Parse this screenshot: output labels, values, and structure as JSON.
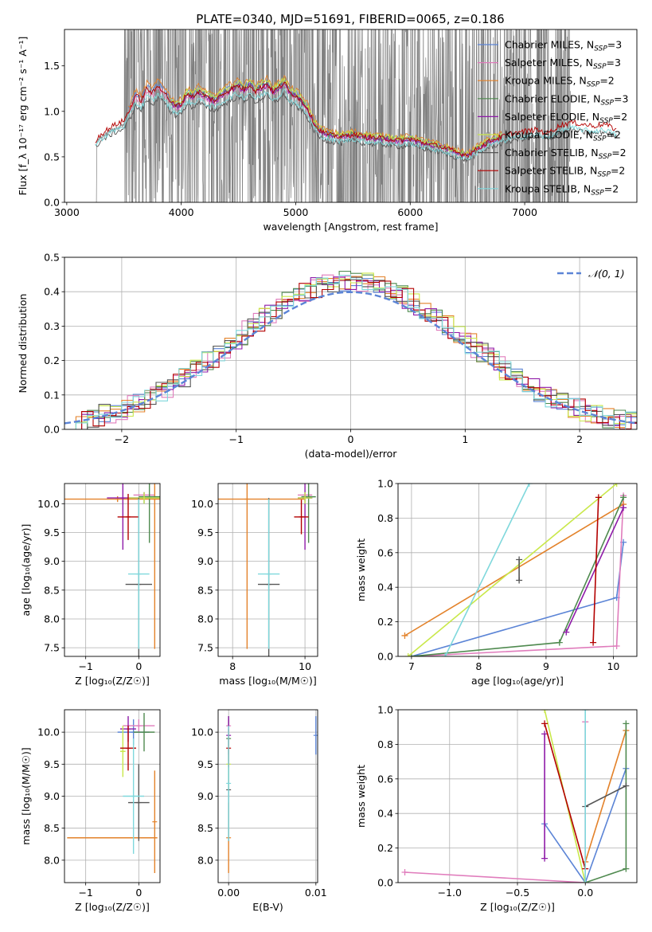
{
  "title": "PLATE=0340, MJD=51691, FIBERID=0065, z=0.186",
  "colors": {
    "Chabrier MILES": "#5b84d6",
    "Salpeter MILES": "#e07cbc",
    "Kroupa MILES": "#e3822a",
    "Chabrier ELODIE": "#4f8a4f",
    "Salpeter ELODIE": "#8e1aa8",
    "Kroupa ELODIE": "#c9e84a",
    "Chabrier STELIB": "#555555",
    "Salpeter STELIB": "#b30000",
    "Kroupa STELIB": "#7fd8dc",
    "data": "#808080",
    "gauss": "#5b84d6"
  },
  "chart_data": [
    {
      "id": "spectrum",
      "type": "line",
      "title": "PLATE=0340, MJD=51691, FIBERID=0065, z=0.186",
      "xlabel": "wavelength [Angstrom, rest frame]",
      "ylabel": "Flux [f_λ 10⁻¹⁷ erg cm⁻² s⁻¹ A⁻¹]",
      "xlim": [
        2980,
        7980
      ],
      "ylim": [
        0,
        1.9
      ],
      "xticks": [
        3000,
        4000,
        5000,
        6000,
        7000
      ],
      "yticks": [
        0.0,
        0.5,
        1.0,
        1.5
      ],
      "grid": false,
      "legend_position": "top-right",
      "series": [
        {
          "name": "Chabrier MILES, N_SSP=3",
          "range": [
            3540,
            6800
          ],
          "scale": 1.02
        },
        {
          "name": "Salpeter MILES, N_SSP=3",
          "range": [
            3540,
            6800
          ],
          "scale": 0.98
        },
        {
          "name": "Kroupa MILES, N_SSP=2",
          "range": [
            3540,
            6800
          ],
          "scale": 1.05
        },
        {
          "name": "Chabrier ELODIE, N_SSP=3",
          "range": [
            3900,
            6800
          ],
          "scale": 1.0
        },
        {
          "name": "Salpeter ELODIE, N_SSP=2",
          "range": [
            3900,
            6800
          ],
          "scale": 0.99
        },
        {
          "name": "Kroupa ELODIE, N_SSP=2",
          "range": [
            3900,
            6800
          ],
          "scale": 1.03
        },
        {
          "name": "Chabrier STELIB, N_SSP=2",
          "range": [
            3250,
            7800
          ],
          "scale": 0.9
        },
        {
          "name": "Salpeter STELIB, N_SSP=2",
          "range": [
            3250,
            7800
          ],
          "scale": 1.0
        },
        {
          "name": "Kroupa STELIB, N_SSP=2",
          "range": [
            3250,
            7800
          ],
          "scale": 0.93
        }
      ],
      "model_curve": {
        "x": [
          3250,
          3300,
          3400,
          3500,
          3550,
          3600,
          3650,
          3700,
          3750,
          3800,
          3850,
          3900,
          3950,
          4000,
          4050,
          4100,
          4150,
          4200,
          4250,
          4300,
          4350,
          4400,
          4450,
          4500,
          4550,
          4600,
          4650,
          4700,
          4750,
          4800,
          4850,
          4900,
          4950,
          5000,
          5050,
          5100,
          5150,
          5200,
          5300,
          5400,
          5500,
          5600,
          5700,
          5800,
          5900,
          6000,
          6100,
          6200,
          6300,
          6400,
          6500,
          6600,
          6700,
          6800,
          6900,
          7000,
          7100,
          7200,
          7300,
          7400,
          7500,
          7600,
          7700,
          7800
        ],
        "y": [
          0.68,
          0.75,
          0.84,
          0.9,
          1.02,
          1.18,
          1.12,
          1.25,
          1.2,
          1.28,
          1.22,
          1.12,
          1.06,
          1.08,
          1.2,
          1.16,
          1.22,
          1.18,
          1.14,
          1.12,
          1.18,
          1.22,
          1.26,
          1.28,
          1.24,
          1.3,
          1.22,
          1.27,
          1.3,
          1.22,
          1.26,
          1.32,
          1.2,
          1.18,
          1.12,
          1.04,
          0.9,
          0.8,
          0.74,
          0.72,
          0.75,
          0.72,
          0.71,
          0.7,
          0.68,
          0.7,
          0.66,
          0.63,
          0.6,
          0.55,
          0.52,
          0.6,
          0.68,
          0.72,
          0.76,
          0.78,
          0.8,
          0.76,
          0.84,
          0.88,
          0.86,
          0.84,
          0.86,
          0.8
        ]
      },
      "data_range": [
        3250,
        7400
      ],
      "data_clip_start": 3500
    },
    {
      "id": "residuals",
      "type": "histogram",
      "xlabel": "(data-model)/error",
      "ylabel": "Normed distribution",
      "xlim": [
        -2.5,
        2.5
      ],
      "ylim": [
        0,
        0.5
      ],
      "xticks": [
        -2,
        -1,
        0,
        1,
        2
      ],
      "yticks": [
        0.0,
        0.1,
        0.2,
        0.3,
        0.4,
        0.5
      ],
      "grid": true,
      "legend_position": "top-right",
      "legend": [
        "𝒩(0, 1)"
      ],
      "bin_width": 0.1,
      "bin_range": [
        -2.3,
        2.5
      ]
    },
    {
      "id": "age-vs-Z",
      "type": "scatter",
      "xlabel": "Z [log₁₀(Z/Z☉)]",
      "ylabel": "age  [log₁₀(age/yr)]",
      "xlim": [
        -1.4,
        0.4
      ],
      "ylim": [
        7.35,
        10.35
      ],
      "xticks": [
        -1,
        0
      ],
      "yticks": [
        7.5,
        8.0,
        8.5,
        9.0,
        9.5,
        10.0
      ],
      "grid": true,
      "points": [
        {
          "model": "Chabrier MILES",
          "x": 0.1,
          "y": 10.1,
          "xerr": 0.3,
          "yerr": 0.1
        },
        {
          "model": "Salpeter MILES",
          "x": 0.1,
          "y": 10.15,
          "xerr": 0.2,
          "yerr": 0.05
        },
        {
          "model": "Kroupa MILES",
          "x": -0.4,
          "y": 10.08,
          "xerr": 1.0,
          "yerr": 0.05
        },
        {
          "model": "Kroupa MILES",
          "x": 0.3,
          "y": 10.08,
          "xerr": 0.0,
          "yerr": 2.6
        },
        {
          "model": "Chabrier ELODIE",
          "x": 0.2,
          "y": 10.12,
          "xerr": 0.2,
          "yerr": 0.8
        },
        {
          "model": "Salpeter ELODIE",
          "x": -0.3,
          "y": 10.1,
          "xerr": 0.3,
          "yerr": 0.9
        },
        {
          "model": "Kroupa ELODIE",
          "x": 0.1,
          "y": 10.1,
          "xerr": 0.3,
          "yerr": 0.1
        },
        {
          "model": "Chabrier STELIB",
          "x": 0.0,
          "y": 8.6,
          "xerr": 0.25,
          "yerr": 1.5
        },
        {
          "model": "Salpeter STELIB",
          "x": -0.2,
          "y": 9.77,
          "xerr": 0.2,
          "yerr": 0.4
        },
        {
          "model": "Kroupa STELIB",
          "x": 0.0,
          "y": 8.78,
          "xerr": 0.2,
          "yerr": 1.3
        }
      ]
    },
    {
      "id": "age-vs-mass",
      "type": "scatter",
      "xlabel": "mass [log₁₀(M/M☉)]",
      "ylabel": "",
      "xlim": [
        7.6,
        10.35
      ],
      "ylim": [
        7.35,
        10.35
      ],
      "xticks": [
        8,
        10
      ],
      "yticks": [
        7.5,
        8.0,
        8.5,
        9.0,
        9.5,
        10.0
      ],
      "grid": true,
      "points": [
        {
          "model": "Chabrier MILES",
          "x": 10.0,
          "y": 10.1,
          "xerr": 0.2,
          "yerr": 0.05
        },
        {
          "model": "Salpeter MILES",
          "x": 10.0,
          "y": 10.15,
          "xerr": 0.2,
          "yerr": 0.05
        },
        {
          "model": "Kroupa MILES",
          "x": 8.4,
          "y": 10.08,
          "xerr": 1.6,
          "yerr": 2.6
        },
        {
          "model": "Chabrier ELODIE",
          "x": 10.1,
          "y": 10.12,
          "xerr": 0.2,
          "yerr": 0.8
        },
        {
          "model": "Salpeter ELODIE",
          "x": 10.0,
          "y": 10.1,
          "xerr": 0.2,
          "yerr": 0.9
        },
        {
          "model": "Kroupa ELODIE",
          "x": 10.0,
          "y": 10.1,
          "xerr": 0.2,
          "yerr": 0.1
        },
        {
          "model": "Chabrier STELIB",
          "x": 9.0,
          "y": 8.6,
          "xerr": 0.3,
          "yerr": 1.5
        },
        {
          "model": "Salpeter STELIB",
          "x": 9.9,
          "y": 9.77,
          "xerr": 0.2,
          "yerr": 0.3
        },
        {
          "model": "Kroupa STELIB",
          "x": 9.0,
          "y": 8.78,
          "xerr": 0.3,
          "yerr": 1.3
        }
      ]
    },
    {
      "id": "weight-vs-age",
      "type": "line",
      "xlabel": "age  [log₁₀(age/yr)]",
      "ylabel": "mass weight",
      "xlim": [
        6.8,
        10.35
      ],
      "ylim": [
        0,
        1
      ],
      "xticks": [
        7,
        8,
        9,
        10
      ],
      "yticks": [
        0.0,
        0.2,
        0.4,
        0.6,
        0.8,
        1.0
      ],
      "grid": true,
      "series": [
        {
          "model": "Chabrier MILES",
          "x": [
            7.0,
            10.05,
            10.15
          ],
          "y": [
            0.0,
            0.34,
            0.66
          ]
        },
        {
          "model": "Salpeter MILES",
          "x": [
            7.0,
            10.05,
            10.15
          ],
          "y": [
            0.0,
            0.06,
            0.93
          ]
        },
        {
          "model": "Kroupa MILES",
          "x": [
            6.9,
            10.15
          ],
          "y": [
            0.12,
            0.88
          ]
        },
        {
          "model": "Chabrier ELODIE",
          "x": [
            7.0,
            9.2,
            10.15
          ],
          "y": [
            0.0,
            0.08,
            0.92
          ]
        },
        {
          "model": "Salpeter ELODIE",
          "x": [
            9.3,
            10.15
          ],
          "y": [
            0.14,
            0.86
          ]
        },
        {
          "model": "Kroupa ELODIE",
          "x": [
            6.95,
            10.05
          ],
          "y": [
            0.0,
            1.0
          ]
        },
        {
          "model": "Chabrier STELIB",
          "x": [
            8.6,
            8.6
          ],
          "y": [
            0.44,
            0.56
          ]
        },
        {
          "model": "Salpeter STELIB",
          "x": [
            9.7,
            9.78
          ],
          "y": [
            0.08,
            0.92
          ]
        },
        {
          "model": "Kroupa STELIB",
          "x": [
            7.5,
            8.75
          ],
          "y": [
            0.0,
            1.0
          ]
        }
      ]
    },
    {
      "id": "mass-vs-Z",
      "type": "scatter",
      "xlabel": "Z [log₁₀(Z/Z☉)]",
      "ylabel": "mass [log₁₀(M/M☉)]",
      "xlim": [
        -1.4,
        0.4
      ],
      "ylim": [
        7.65,
        10.35
      ],
      "xticks": [
        -1,
        0
      ],
      "yticks": [
        8.0,
        8.5,
        9.0,
        9.5,
        10.0
      ],
      "grid": true,
      "points": [
        {
          "model": "Chabrier MILES",
          "x": -0.1,
          "y": 10.0,
          "xerr": 0.3,
          "yerr": 0.2
        },
        {
          "model": "Salpeter MILES",
          "x": 0.0,
          "y": 10.1,
          "xerr": 0.3,
          "yerr": 0.1
        },
        {
          "model": "Kroupa MILES",
          "x": -0.5,
          "y": 8.35,
          "xerr": 0.85,
          "yerr": 0.0
        },
        {
          "model": "Kroupa MILES",
          "x": 0.3,
          "y": 8.6,
          "xerr": 0.0,
          "yerr": 0.8
        },
        {
          "model": "Chabrier ELODIE",
          "x": 0.1,
          "y": 10.0,
          "xerr": 0.2,
          "yerr": 0.3
        },
        {
          "model": "Salpeter ELODIE",
          "x": -0.2,
          "y": 10.05,
          "xerr": 0.15,
          "yerr": 0.2
        },
        {
          "model": "Kroupa ELODIE",
          "x": -0.3,
          "y": 9.7,
          "xerr": 0.05,
          "yerr": 0.4
        },
        {
          "model": "Chabrier STELIB",
          "x": 0.0,
          "y": 8.9,
          "xerr": 0.2,
          "yerr": 0.6
        },
        {
          "model": "Salpeter STELIB",
          "x": -0.2,
          "y": 9.75,
          "xerr": 0.15,
          "yerr": 0.35
        },
        {
          "model": "Kroupa STELIB",
          "x": -0.1,
          "y": 9.0,
          "xerr": 0.2,
          "yerr": 0.9
        }
      ]
    },
    {
      "id": "mass-vs-EBV",
      "type": "scatter",
      "xlabel": "E(B-V)",
      "ylabel": "",
      "xlim": [
        -0.0012,
        0.0102
      ],
      "ylim": [
        7.65,
        10.35
      ],
      "xticks": [
        0.0,
        0.01
      ],
      "xtick_labels": [
        "0.00",
        "0.01"
      ],
      "yticks": [
        8.0,
        8.5,
        9.0,
        9.5,
        10.0
      ],
      "grid": true,
      "points": [
        {
          "model": "Chabrier MILES",
          "x": 0.01,
          "y": 9.95,
          "yerr": 0.3
        },
        {
          "model": "Salpeter MILES",
          "x": 0.0,
          "y": 10.1,
          "yerr": 0.1
        },
        {
          "model": "Kroupa MILES",
          "x": 0.0,
          "y": 8.35,
          "yerr": 0.55
        },
        {
          "model": "Chabrier ELODIE",
          "x": 0.0,
          "y": 9.9,
          "yerr": 0.35
        },
        {
          "model": "Salpeter ELODIE",
          "x": 0.0,
          "y": 9.95,
          "yerr": 0.3
        },
        {
          "model": "Kroupa ELODIE",
          "x": 0.0,
          "y": 9.5,
          "yerr": 0.4
        },
        {
          "model": "Chabrier STELIB",
          "x": 0.0,
          "y": 9.1,
          "yerr": 0.8
        },
        {
          "model": "Salpeter STELIB",
          "x": 0.0,
          "y": 9.75,
          "yerr": 0.3
        },
        {
          "model": "Kroupa STELIB",
          "x": 0.0,
          "y": 9.2,
          "yerr": 0.9
        }
      ]
    },
    {
      "id": "weight-vs-Z",
      "type": "line",
      "xlabel": "Z [log₁₀(Z/Z☉)]",
      "ylabel": "mass weight",
      "xlim": [
        -1.38,
        0.38
      ],
      "ylim": [
        0,
        1
      ],
      "xticks": [
        -1.0,
        -0.5,
        0.0
      ],
      "xtick_labels": [
        "−1.0",
        "−0.5",
        "0.0"
      ],
      "yticks": [
        0.0,
        0.2,
        0.4,
        0.6,
        0.8,
        1.0
      ],
      "grid": true,
      "series": [
        {
          "model": "Chabrier MILES",
          "x": [
            -0.3,
            0.0,
            0.3
          ],
          "y": [
            0.34,
            0.0,
            0.66
          ]
        },
        {
          "model": "Salpeter MILES",
          "x": [
            -1.33,
            0.0,
            0.0
          ],
          "y": [
            0.06,
            0.0,
            0.93
          ]
        },
        {
          "model": "Kroupa MILES",
          "x": [
            0.0,
            0.3
          ],
          "y": [
            0.12,
            0.88
          ]
        },
        {
          "model": "Chabrier ELODIE",
          "x": [
            0.0,
            0.3,
            0.3
          ],
          "y": [
            0.0,
            0.08,
            0.92
          ]
        },
        {
          "model": "Salpeter ELODIE",
          "x": [
            -0.3,
            -0.3
          ],
          "y": [
            0.14,
            0.86
          ]
        },
        {
          "model": "Kroupa ELODIE",
          "x": [
            -0.3,
            0.0
          ],
          "y": [
            1.0,
            0.0
          ]
        },
        {
          "model": "Chabrier STELIB",
          "x": [
            0.0,
            0.3
          ],
          "y": [
            0.44,
            0.56
          ]
        },
        {
          "model": "Salpeter STELIB",
          "x": [
            -0.3,
            0.0
          ],
          "y": [
            0.92,
            0.08
          ]
        },
        {
          "model": "Kroupa STELIB",
          "x": [
            0.0,
            0.0
          ],
          "y": [
            0.0,
            1.0
          ]
        }
      ]
    }
  ]
}
